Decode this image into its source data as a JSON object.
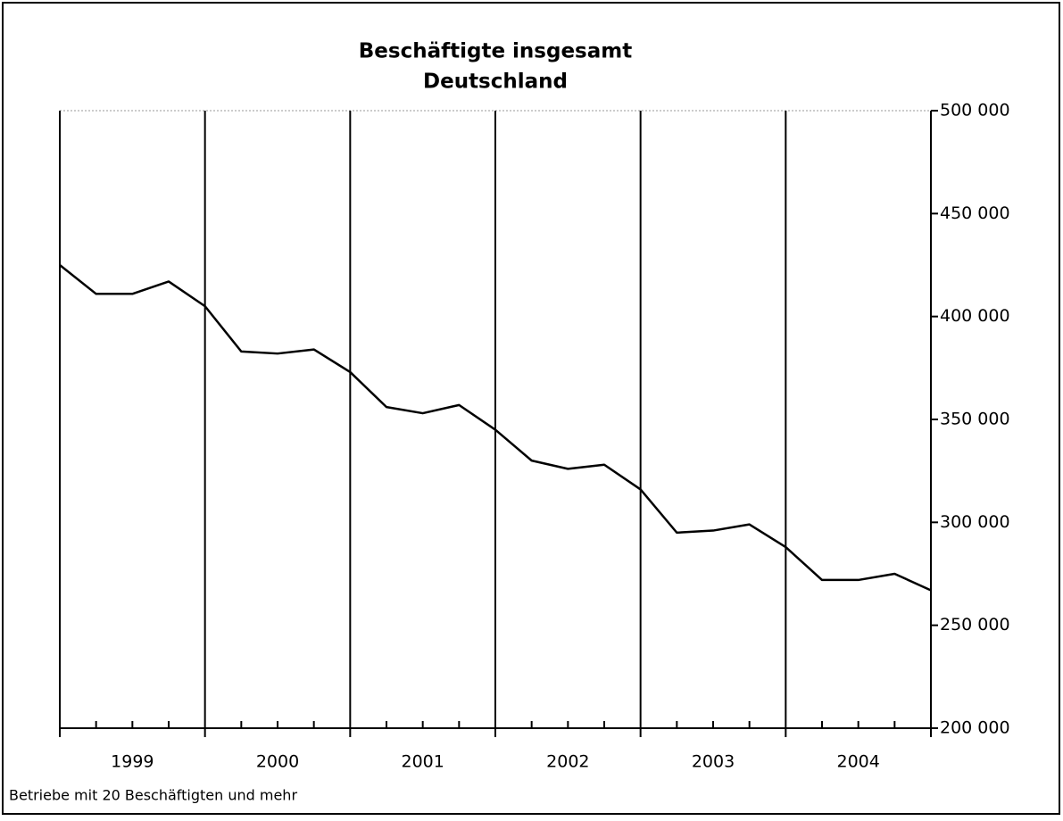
{
  "chart_data": {
    "type": "line",
    "title": "Beschäftigte insgesamt",
    "subtitle": "Deutschland",
    "footnote": "Betriebe mit 20 Beschäftigten und mehr",
    "categories": [
      "1999",
      "2000",
      "2001",
      "2002",
      "2003",
      "2004"
    ],
    "x": [
      1999,
      1999.25,
      1999.5,
      1999.75,
      2000,
      2000.25,
      2000.5,
      2000.75,
      2001,
      2001.25,
      2001.5,
      2001.75,
      2002,
      2002.25,
      2002.5,
      2002.75,
      2003,
      2003.25,
      2003.5,
      2003.75,
      2004,
      2004.25,
      2004.5,
      2004.75,
      2005
    ],
    "series": [
      {
        "color": "#000000",
        "values": [
          425000,
          411000,
          411000,
          417000,
          405000,
          383000,
          382000,
          384000,
          373000,
          356000,
          353000,
          357000,
          345000,
          330000,
          326000,
          328000,
          316000,
          295000,
          296000,
          299000,
          288000,
          272000,
          272000,
          275000,
          267000
        ]
      }
    ],
    "xlim": [
      1999,
      2005
    ],
    "xticks": [
      1999,
      1999.25,
      1999.5,
      1999.75,
      2000,
      2000.25,
      2000.5,
      2000.75,
      2001,
      2001.25,
      2001.5,
      2001.75,
      2002,
      2002.25,
      2002.5,
      2002.75,
      2003,
      2003.25,
      2003.5,
      2003.75,
      2004,
      2004.25,
      2004.5,
      2004.75,
      2005
    ],
    "ylim": [
      200000,
      500000
    ],
    "yticks": [
      {
        "value": 200000,
        "label": "200 000"
      },
      {
        "value": 250000,
        "label": "250 000"
      },
      {
        "value": 300000,
        "label": "300 000"
      },
      {
        "value": 350000,
        "label": "350 000"
      },
      {
        "value": 400000,
        "label": "400 000"
      },
      {
        "value": 450000,
        "label": "450 000"
      },
      {
        "value": 500000,
        "label": "500 000"
      }
    ],
    "y_axis_side": "right"
  }
}
